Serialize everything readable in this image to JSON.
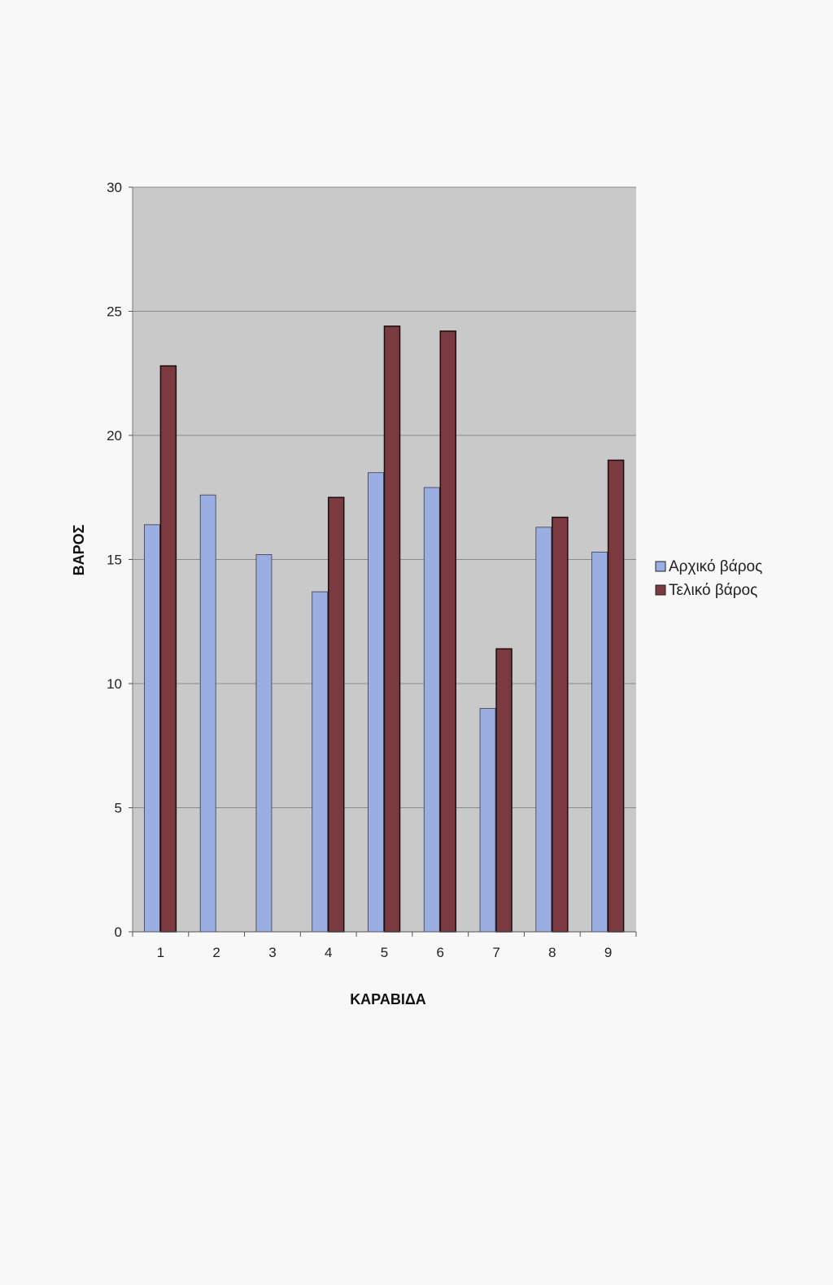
{
  "chart_data": {
    "type": "bar",
    "title": "",
    "xlabel": "ΚΑΡΑΒΙΔΑ",
    "ylabel": "ΒΑΡΟΣ",
    "ylim": [
      0,
      30
    ],
    "yticks": [
      0,
      5,
      10,
      15,
      20,
      25,
      30
    ],
    "categories": [
      "1",
      "2",
      "3",
      "4",
      "5",
      "6",
      "7",
      "8",
      "9"
    ],
    "series": [
      {
        "name": "Αρχικό βάρος",
        "values": [
          16.4,
          17.6,
          15.2,
          13.7,
          18.5,
          17.9,
          9.0,
          16.3,
          15.3
        ]
      },
      {
        "name": "Τελικό βάρος",
        "values": [
          22.8,
          null,
          null,
          17.5,
          24.4,
          24.2,
          11.4,
          16.7,
          19.0
        ]
      }
    ],
    "grid": true,
    "legend_position": "right",
    "colors": {
      "plot_background": "#c9c9c9",
      "initial": "#9aaee2",
      "final": "#7a3a40",
      "grid": "#8a8a8a"
    }
  }
}
